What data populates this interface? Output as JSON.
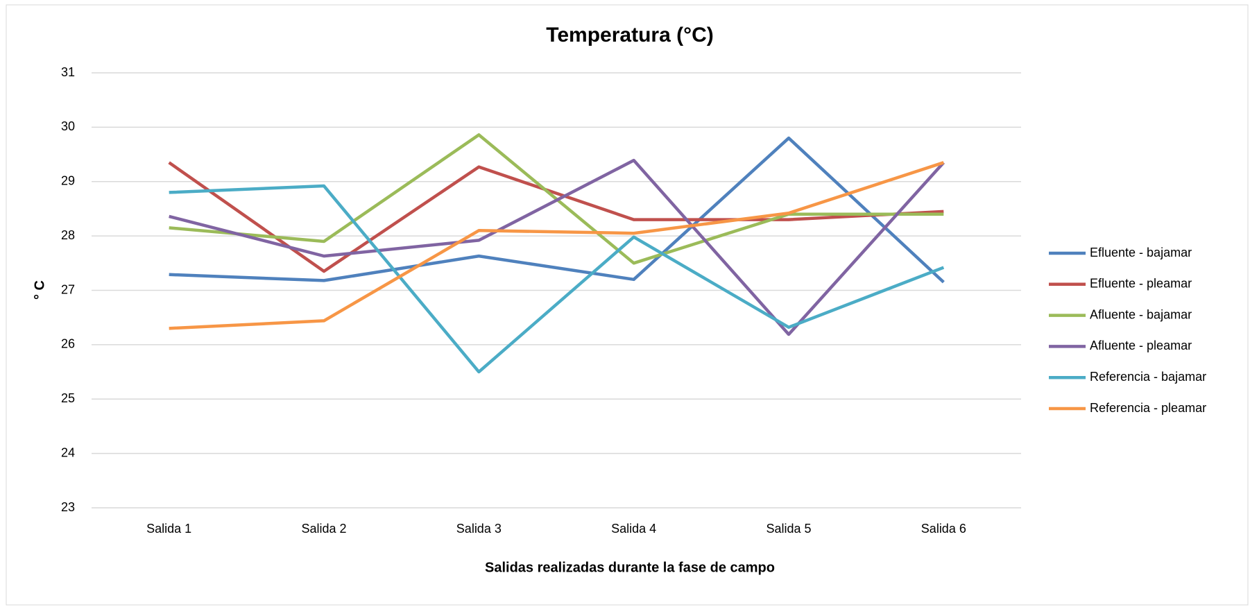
{
  "chart_data": {
    "type": "line",
    "title": "Temperatura (°C)",
    "x_label": "Salidas realizadas durante la fase de campo",
    "y_label": "° C",
    "categories": [
      "Salida 1",
      "Salida 2",
      "Salida 3",
      "Salida 4",
      "Salida 5",
      "Salida 6"
    ],
    "series": [
      {
        "name": "Efluente - bajamar",
        "color": "#4f81bd",
        "values": [
          27.29,
          27.18,
          27.63,
          27.2,
          29.8,
          27.15
        ]
      },
      {
        "name": "Efluente - pleamar",
        "color": "#c0504d",
        "values": [
          29.35,
          27.35,
          29.27,
          28.3,
          28.3,
          28.45
        ]
      },
      {
        "name": "Afluente - bajamar",
        "color": "#9bbb59",
        "values": [
          28.15,
          27.9,
          29.86,
          27.5,
          28.4,
          28.4
        ]
      },
      {
        "name": "Afluente - pleamar",
        "color": "#8064a2",
        "values": [
          28.36,
          27.63,
          27.92,
          29.39,
          26.19,
          29.35
        ]
      },
      {
        "name": "Referencia - bajamar",
        "color": "#4bacc6",
        "values": [
          28.8,
          28.92,
          25.5,
          27.98,
          26.32,
          27.42
        ]
      },
      {
        "name": "Referencia - pleamar",
        "color": "#f79646",
        "values": [
          26.3,
          26.44,
          28.1,
          28.05,
          28.42,
          29.35
        ]
      }
    ],
    "ylim": [
      23,
      31
    ],
    "yticks": [
      23,
      24,
      25,
      26,
      27,
      28,
      29,
      30,
      31
    ],
    "grid": true,
    "legend": "right"
  }
}
